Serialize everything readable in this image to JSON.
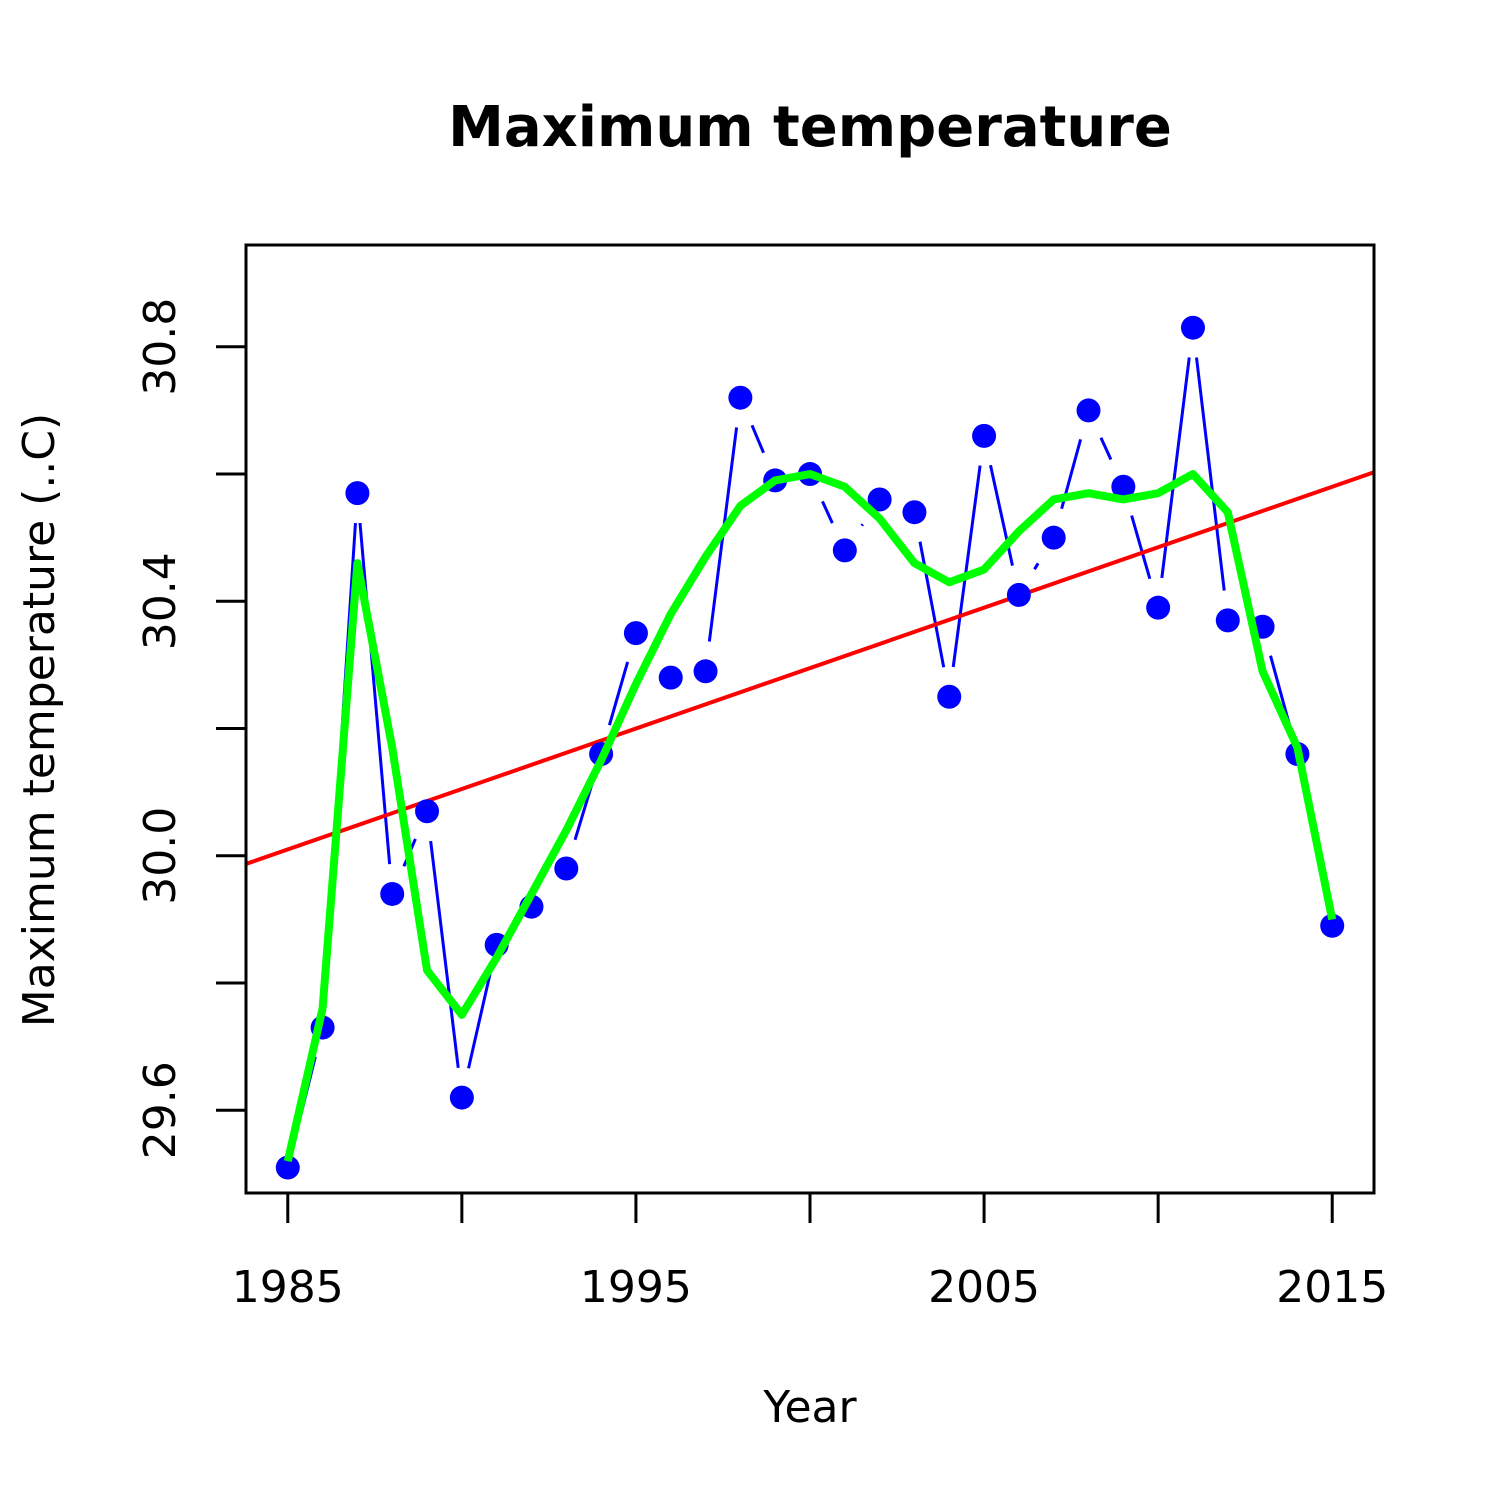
{
  "chart_data": {
    "type": "line",
    "title": "Maximum temperature",
    "xlabel": "Year",
    "ylabel": "Maximum temperature (..C)",
    "xlim": [
      1983.8,
      2016.2
    ],
    "ylim": [
      29.47,
      30.96
    ],
    "x_ticks": [
      1985,
      1990,
      1995,
      2000,
      2005,
      2010,
      2015
    ],
    "x_tick_labels": [
      "1985",
      "",
      "1995",
      "",
      "2005",
      "",
      "2015"
    ],
    "y_ticks": [
      29.6,
      29.8,
      30.0,
      30.2,
      30.4,
      30.6,
      30.8
    ],
    "y_tick_labels": [
      "29.6",
      "",
      "30.0",
      "",
      "30.4",
      "",
      "30.8"
    ],
    "grid": false,
    "legend": "none",
    "x": [
      1985,
      1986,
      1987,
      1988,
      1989,
      1990,
      1991,
      1992,
      1993,
      1994,
      1995,
      1996,
      1997,
      1998,
      1999,
      2000,
      2001,
      2002,
      2003,
      2004,
      2005,
      2006,
      2007,
      2008,
      2009,
      2010,
      2011,
      2012,
      2013,
      2014,
      2015
    ],
    "series": [
      {
        "style": "points-and-lines",
        "color": "#0000ff",
        "values": [
          29.51,
          29.73,
          30.57,
          29.94,
          30.07,
          29.62,
          29.86,
          29.92,
          29.98,
          30.16,
          30.35,
          30.28,
          30.29,
          30.72,
          30.59,
          30.6,
          30.48,
          30.56,
          30.54,
          30.25,
          30.66,
          30.41,
          30.5,
          30.7,
          30.58,
          30.39,
          30.83,
          30.37,
          30.36,
          30.16,
          29.89
        ]
      },
      {
        "style": "line",
        "color": "#ff0000",
        "values": [
          30.01,
          30.03,
          30.05,
          30.07,
          30.08,
          30.1,
          30.12,
          30.14,
          30.16,
          30.18,
          30.2,
          30.22,
          30.24,
          30.25,
          30.27,
          30.29,
          30.31,
          30.33,
          30.35,
          30.37,
          30.39,
          30.41,
          30.42,
          30.44,
          30.46,
          30.48,
          30.5,
          30.52,
          30.54,
          30.56,
          30.58
        ]
      },
      {
        "style": "line",
        "color": "#00ff00",
        "values": [
          29.52,
          29.76,
          30.46,
          30.17,
          29.82,
          29.75,
          29.84,
          29.94,
          30.04,
          30.15,
          30.27,
          30.38,
          30.47,
          30.55,
          30.59,
          30.6,
          30.58,
          30.53,
          30.46,
          30.43,
          30.45,
          30.51,
          30.56,
          30.57,
          30.56,
          30.57,
          30.6,
          30.54,
          30.29,
          30.17,
          29.9
        ]
      }
    ]
  }
}
